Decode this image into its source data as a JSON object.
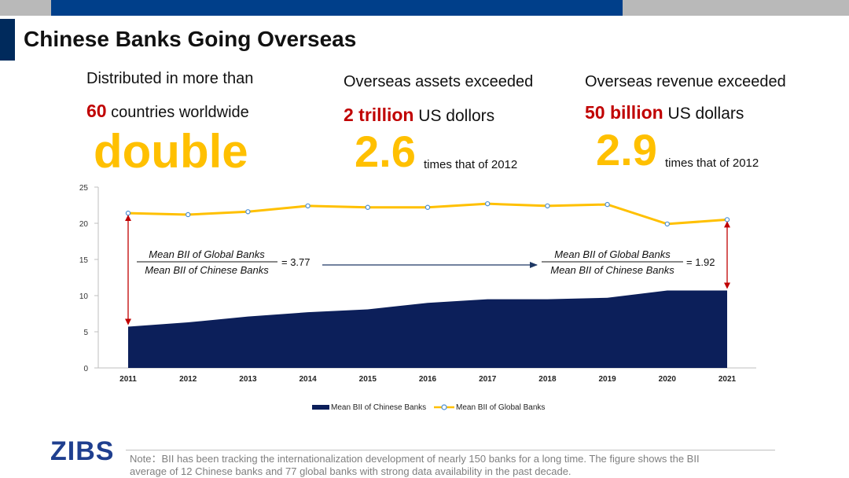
{
  "page": {
    "title": "Chinese Banks Going Overseas"
  },
  "stats": {
    "s1_line1": "Distributed in more than",
    "s1_red": "60",
    "s1_rest": " countries worldwide",
    "s1_big": "double",
    "s2_line1": "Overseas assets exceeded",
    "s2_red": "2 trillion",
    "s2_rest": " US dollors",
    "s2_big": "2.6",
    "s2_times": "times that of 2012",
    "s3_line1": "Overseas revenue exceeded",
    "s3_red": "50 billion",
    "s3_rest": " US dollars",
    "s3_big": "2.9",
    "s3_times": "times that of 2012"
  },
  "chart_data": {
    "type": "area",
    "categories": [
      "2011",
      "2012",
      "2013",
      "2014",
      "2015",
      "2016",
      "2017",
      "2018",
      "2019",
      "2020",
      "2021"
    ],
    "series": [
      {
        "name": "Mean BII of Chinese Banks",
        "type": "area",
        "color": "#0c1f5a",
        "values": [
          5.7,
          6.3,
          7.1,
          7.7,
          8.1,
          9.0,
          9.5,
          9.5,
          9.7,
          10.7,
          10.7
        ]
      },
      {
        "name": "Mean BII of Global Banks",
        "type": "line",
        "color": "#ffc000",
        "values": [
          21.4,
          21.2,
          21.6,
          22.4,
          22.2,
          22.2,
          22.7,
          22.4,
          22.6,
          19.9,
          20.5
        ]
      }
    ],
    "y_ticks": [
      "0",
      "5",
      "10",
      "15",
      "20",
      "25"
    ],
    "ylim": [
      0,
      25
    ],
    "legend": [
      "Mean BII of Chinese Banks",
      "Mean BII of Global Banks"
    ],
    "annotations": {
      "left_numerator": "Mean BII of Global Banks",
      "left_denominator": "Mean BII of Chinese Banks",
      "left_value": "= 3.77",
      "right_numerator": "Mean BII of Global Banks",
      "right_denominator": "Mean BII of Chinese Banks",
      "right_value": "= 1.92"
    }
  },
  "footer": {
    "logo": "ZIBS",
    "note": "Note：BII has been tracking the internationalization development of nearly 150 banks for a long time. The figure shows the BII average of 12 Chinese banks and 77 global banks with strong data availability in the past decade."
  },
  "colors": {
    "accent_blue": "#003f8a",
    "gray_bar": "#b9b9b9",
    "highlight_red": "#c00000",
    "highlight_yellow": "#ffc000",
    "area_navy": "#0c1f5a"
  }
}
